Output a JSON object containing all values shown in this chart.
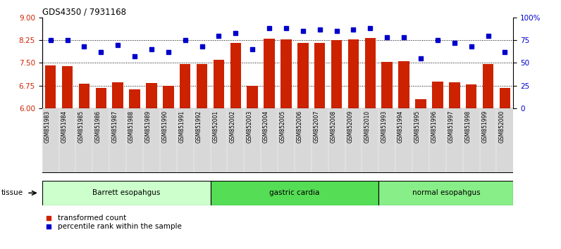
{
  "title": "GDS4350 / 7931168",
  "samples": [
    "GSM851983",
    "GSM851984",
    "GSM851985",
    "GSM851986",
    "GSM851987",
    "GSM851988",
    "GSM851989",
    "GSM851990",
    "GSM851991",
    "GSM851992",
    "GSM852001",
    "GSM852002",
    "GSM852003",
    "GSM852004",
    "GSM852005",
    "GSM852006",
    "GSM852007",
    "GSM852008",
    "GSM852009",
    "GSM852010",
    "GSM851993",
    "GSM851994",
    "GSM851995",
    "GSM851996",
    "GSM851997",
    "GSM851998",
    "GSM851999",
    "GSM852000"
  ],
  "bar_values": [
    7.42,
    7.4,
    6.82,
    6.68,
    6.87,
    6.62,
    6.83,
    6.75,
    7.47,
    7.47,
    7.6,
    8.17,
    6.75,
    8.3,
    8.28,
    8.17,
    8.17,
    8.25,
    8.28,
    8.32,
    7.54,
    7.56,
    6.3,
    6.88,
    6.87,
    6.8,
    7.47,
    6.68
  ],
  "dot_values": [
    75,
    75,
    68,
    62,
    70,
    57,
    65,
    62,
    75,
    68,
    80,
    83,
    65,
    88,
    88,
    85,
    87,
    85,
    87,
    88,
    78,
    78,
    55,
    75,
    72,
    68,
    80,
    62
  ],
  "groups": [
    {
      "label": "Barrett esopahgus",
      "start": 0,
      "end": 10,
      "color": "#ccffcc"
    },
    {
      "label": "gastric cardia",
      "start": 10,
      "end": 20,
      "color": "#55dd55"
    },
    {
      "label": "normal esopahgus",
      "start": 20,
      "end": 28,
      "color": "#88ee88"
    }
  ],
  "bar_color": "#cc2200",
  "dot_color": "#0000cc",
  "ylim_left": [
    6,
    9
  ],
  "ylim_right": [
    0,
    100
  ],
  "yticks_left": [
    6,
    6.75,
    7.5,
    8.25,
    9
  ],
  "yticks_right": [
    0,
    25,
    50,
    75,
    100
  ],
  "hlines": [
    6.75,
    7.5,
    8.25
  ],
  "legend_bar": "transformed count",
  "legend_dot": "percentile rank within the sample",
  "tissue_label": "tissue",
  "xtick_bg": "#d8d8d8",
  "fig_width": 7.96,
  "fig_height": 3.54
}
